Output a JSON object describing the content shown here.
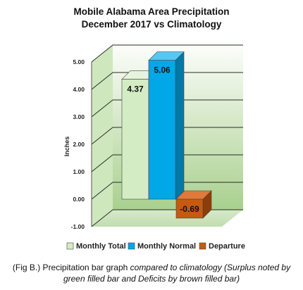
{
  "chart_data": {
    "type": "bar",
    "title_line1": "Mobile Alabama Area Precipitation",
    "title_line2": "December 2017 vs Climatology",
    "ylabel": "Inches",
    "ylim": [
      -1.0,
      5.0
    ],
    "yticks": [
      "-1.00",
      "0.00",
      "1.00",
      "2.00",
      "3.00",
      "4.00",
      "5.00"
    ],
    "series": [
      {
        "name": "Monthly Total",
        "value": 4.37,
        "label": "4.37",
        "color": "#d4ecc4",
        "side": "#a9c99a",
        "top": "#e6f4dc"
      },
      {
        "name": "Monthly Normal",
        "value": 5.06,
        "label": "5.06",
        "color": "#00a8e8",
        "side": "#0078a8",
        "top": "#55c8f0"
      },
      {
        "name": "Departure",
        "value": -0.69,
        "label": "-0.69",
        "color": "#c55a11",
        "side": "#8e3d08",
        "top": "#e07a3a"
      }
    ],
    "grid": true,
    "legend": "bottom"
  },
  "caption": {
    "text_plain": "(Fig B.) Precipitation bar graph ",
    "text_italic": "compared to climatology (Surplus noted by green filled bar and Deficits by brown filled bar)"
  }
}
